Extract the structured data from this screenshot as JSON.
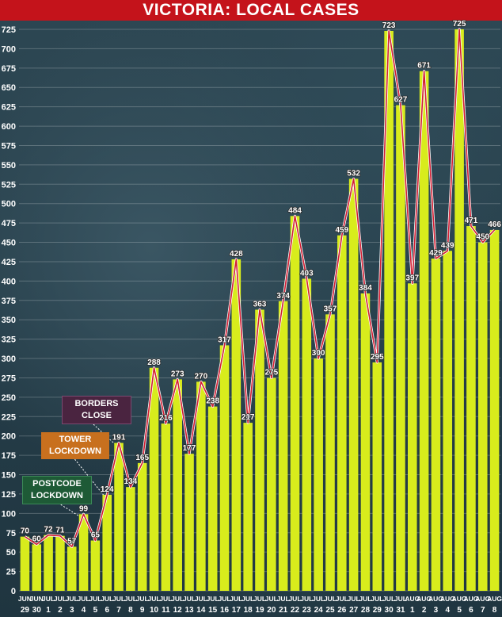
{
  "title": "VICTORIA: LOCAL CASES",
  "colors": {
    "title_bg": "#c4131b",
    "bar_fill": "#d8ec1c",
    "line": "#d21e33",
    "background": "#2b4652"
  },
  "annotations": {
    "borders": [
      "BORDERS",
      "CLOSE"
    ],
    "tower": [
      "TOWER",
      "LOCKDOWN"
    ],
    "postcode": [
      "POSTCODE",
      "LOCKDOWN"
    ]
  },
  "chart_data": {
    "type": "bar",
    "title": "VICTORIA: LOCAL CASES",
    "xlabel": "",
    "ylabel": "",
    "ylim": [
      0,
      725
    ],
    "yticks": [
      0,
      25,
      50,
      75,
      100,
      125,
      150,
      175,
      200,
      225,
      250,
      275,
      300,
      325,
      350,
      375,
      400,
      425,
      450,
      475,
      500,
      525,
      550,
      575,
      600,
      625,
      650,
      675,
      700,
      725
    ],
    "grid": true,
    "overlay_line": true,
    "categories": [
      [
        "JUN",
        "29"
      ],
      [
        "JUN",
        "30"
      ],
      [
        "JUL",
        "1"
      ],
      [
        "JUL",
        "2"
      ],
      [
        "JUL",
        "3"
      ],
      [
        "JUL",
        "4"
      ],
      [
        "JUL",
        "5"
      ],
      [
        "JUL",
        "6"
      ],
      [
        "JUL",
        "7"
      ],
      [
        "JUL",
        "8"
      ],
      [
        "JUL",
        "9"
      ],
      [
        "JUL",
        "10"
      ],
      [
        "JUL",
        "11"
      ],
      [
        "JUL",
        "12"
      ],
      [
        "JUL",
        "13"
      ],
      [
        "JUL",
        "14"
      ],
      [
        "JUL",
        "15"
      ],
      [
        "JUL",
        "16"
      ],
      [
        "JUL",
        "17"
      ],
      [
        "JUL",
        "18"
      ],
      [
        "JUL",
        "19"
      ],
      [
        "JUL",
        "20"
      ],
      [
        "JUL",
        "21"
      ],
      [
        "JUL",
        "22"
      ],
      [
        "JUL",
        "23"
      ],
      [
        "JUL",
        "24"
      ],
      [
        "JUL",
        "25"
      ],
      [
        "JUL",
        "26"
      ],
      [
        "JUL",
        "27"
      ],
      [
        "JUL",
        "28"
      ],
      [
        "JUL",
        "29"
      ],
      [
        "JUL",
        "30"
      ],
      [
        "JUL",
        "31"
      ],
      [
        "AUG",
        "1"
      ],
      [
        "AUG",
        "2"
      ],
      [
        "AUG",
        "3"
      ],
      [
        "AUG",
        "4"
      ],
      [
        "AUG",
        "5"
      ],
      [
        "AUG",
        "6"
      ],
      [
        "AUG",
        "7"
      ],
      [
        "AUG",
        "8"
      ]
    ],
    "values": [
      70,
      60,
      72,
      71,
      57,
      99,
      65,
      124,
      191,
      134,
      165,
      288,
      216,
      273,
      177,
      270,
      238,
      317,
      428,
      217,
      363,
      275,
      374,
      484,
      403,
      300,
      357,
      459,
      532,
      384,
      295,
      723,
      627,
      397,
      671,
      429,
      439,
      725,
      471,
      450,
      466
    ]
  }
}
